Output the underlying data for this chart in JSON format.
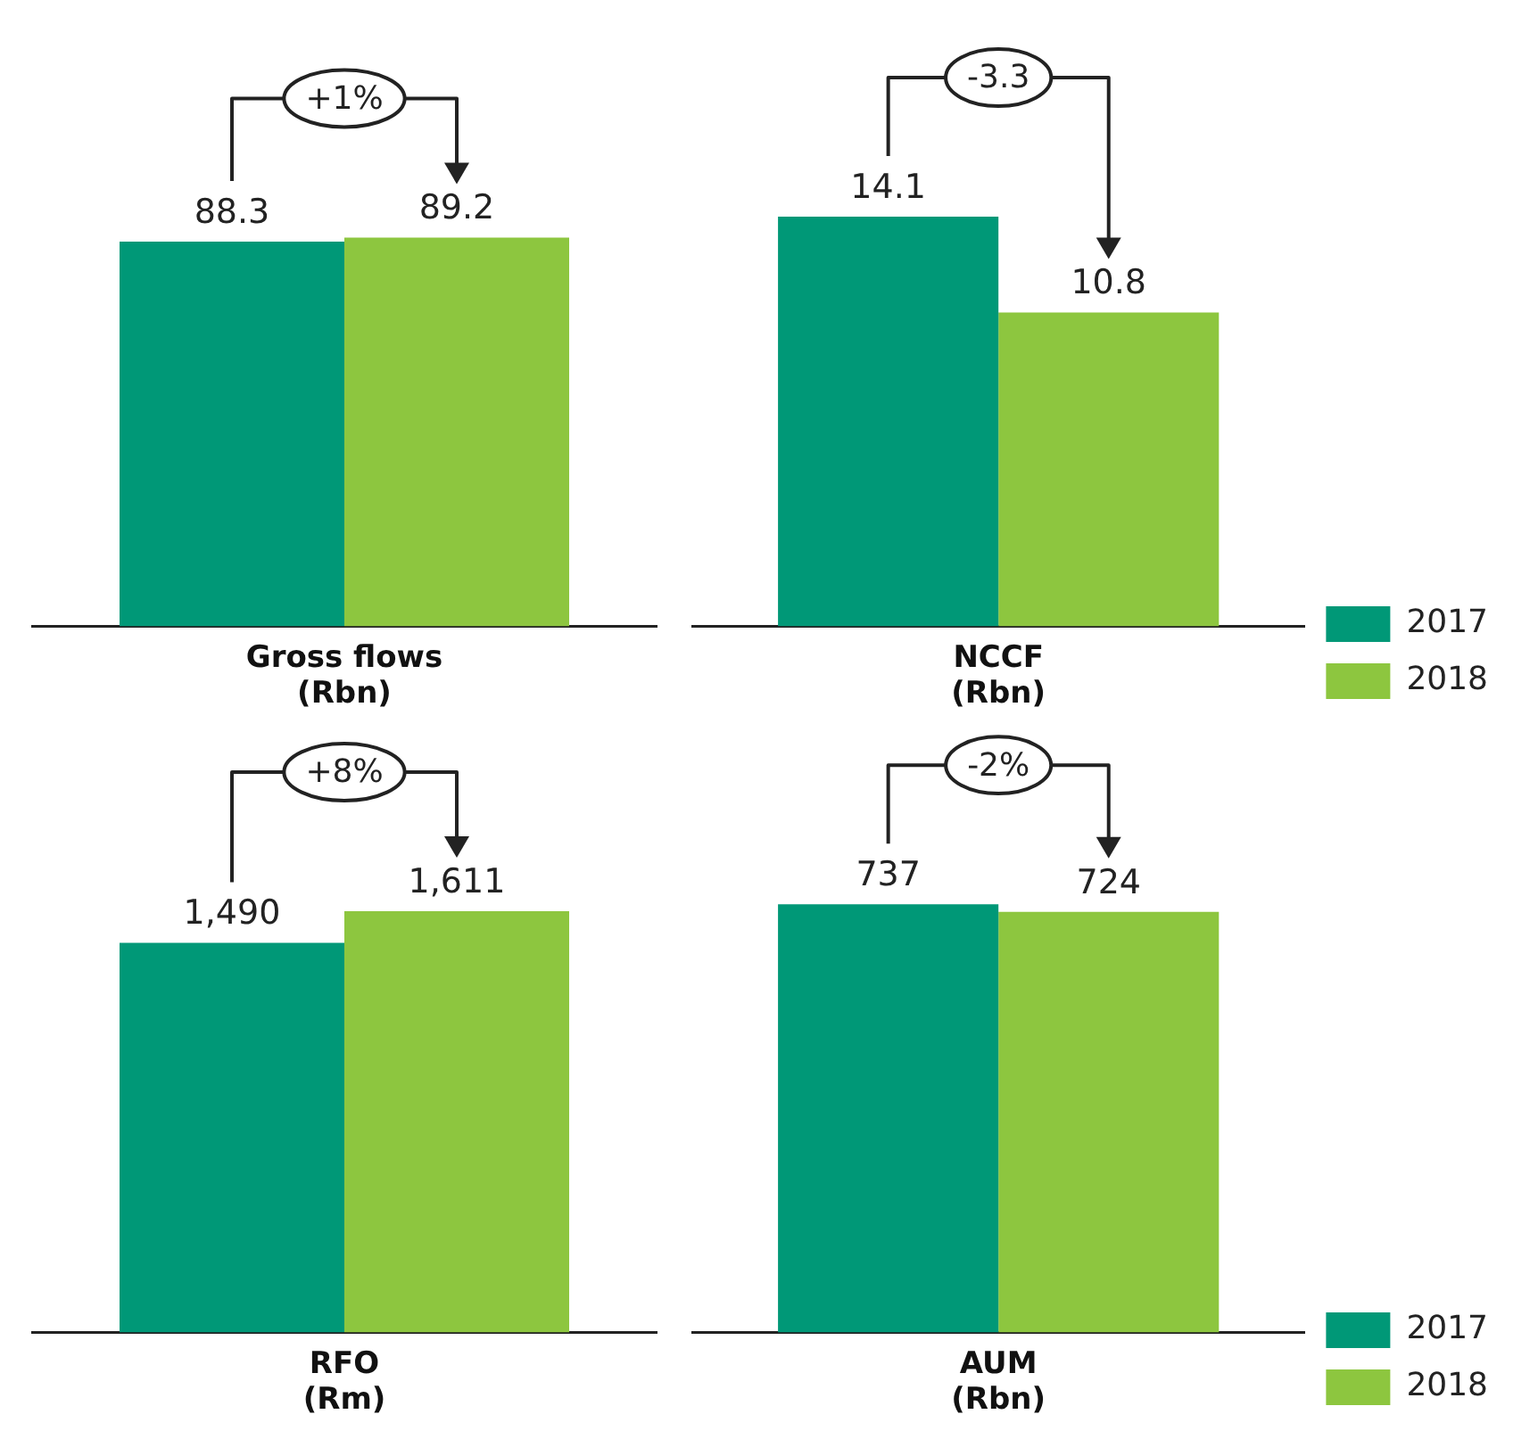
{
  "chart_data": [
    {
      "type": "bar",
      "categories": [
        null
      ],
      "xlabel": "Gross flows\n(Rbn)",
      "annotations": [
        "+1%"
      ],
      "legend": false,
      "series": [
        {
          "color": "#009877",
          "values": [
            88.3
          ],
          "value_labels": [
            "88.3"
          ]
        },
        {
          "color": "#8dc63f",
          "values": [
            89.2
          ],
          "value_labels": [
            "89.2"
          ]
        }
      ]
    },
    {
      "type": "bar",
      "categories": [
        null
      ],
      "xlabel": "NCCF\n(Rbn)",
      "annotations": [
        "-3.3"
      ],
      "legend": "bottom right",
      "series": [
        {
          "name": "2017",
          "color": "#009877",
          "values": [
            14.1
          ],
          "value_labels": [
            "14.1"
          ]
        },
        {
          "name": "2018",
          "color": "#8dc63f",
          "values": [
            10.8
          ],
          "value_labels": [
            "10.8"
          ]
        }
      ]
    },
    {
      "type": "bar",
      "categories": [
        null
      ],
      "xlabel": "RFO\n(Rm)",
      "annotations": [
        "+8%"
      ],
      "legend": false,
      "series": [
        {
          "color": "#009877",
          "values": [
            1490
          ],
          "value_labels": [
            "1,490"
          ]
        },
        {
          "color": "#8dc63f",
          "values": [
            1611
          ],
          "value_labels": [
            "1,611"
          ]
        }
      ]
    },
    {
      "type": "bar",
      "categories": [
        null
      ],
      "xlabel": "AUM\n(Rbn)",
      "annotations": [
        "-2%"
      ],
      "legend": "bottom right",
      "series": [
        {
          "name": "2017",
          "color": "#009877",
          "values": [
            737
          ],
          "value_labels": [
            "737"
          ]
        },
        {
          "name": "2018",
          "color": "#8dc63f",
          "values": [
            724
          ],
          "value_labels": [
            "724"
          ]
        }
      ]
    }
  ]
}
